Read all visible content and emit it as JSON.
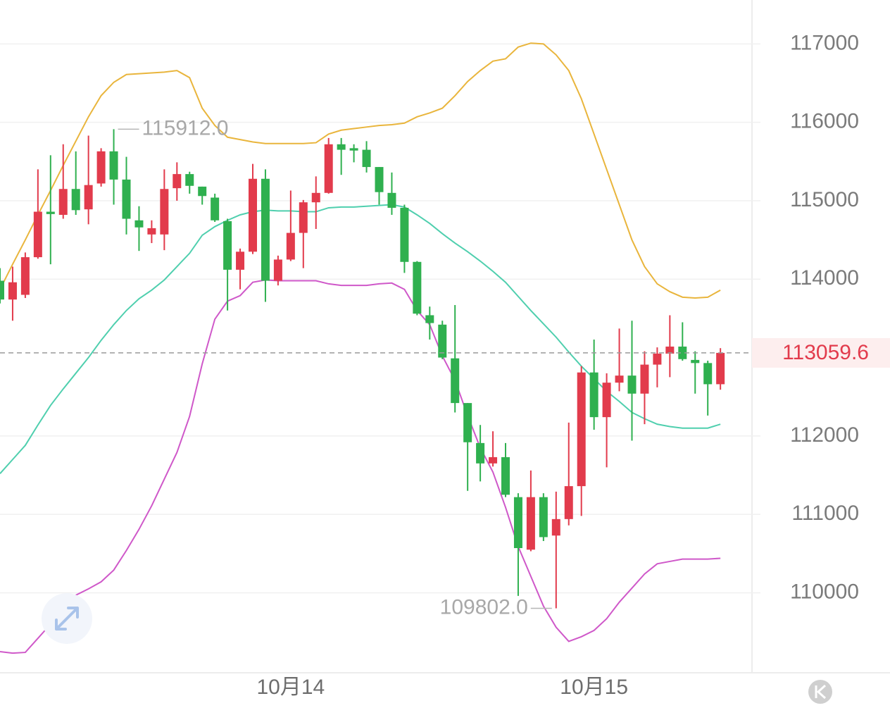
{
  "chart_data": {
    "type": "candlestick",
    "categories": [
      null,
      null,
      null,
      null,
      null,
      null,
      null,
      null,
      null,
      null,
      null,
      null,
      null,
      null,
      null,
      null,
      null,
      null,
      null,
      null,
      null,
      null,
      null,
      "10月14",
      null,
      null,
      null,
      null,
      null,
      null,
      null,
      null,
      null,
      null,
      null,
      null,
      null,
      null,
      null,
      null,
      null,
      null,
      null,
      null,
      null,
      null,
      null,
      "10月15",
      null,
      null,
      null,
      null,
      null,
      null,
      null,
      null,
      null,
      null
    ],
    "open": [
      113980,
      113740,
      113800,
      114280,
      114860,
      114820,
      115150,
      114890,
      115220,
      115630,
      115270,
      114750,
      114570,
      114570,
      115160,
      115340,
      115180,
      115040,
      114740,
      114120,
      114350,
      115280,
      113980,
      114250,
      114590,
      114980,
      115100,
      115720,
      115670,
      115650,
      115430,
      115100,
      114910,
      114220,
      113540,
      113420,
      112990,
      112420,
      111910,
      111650,
      111730,
      111220,
      110550,
      111220,
      110730,
      110940,
      111360,
      112810,
      112240,
      112680,
      112770,
      112540,
      112910,
      113050,
      113140,
      112970,
      112930,
      112660
    ],
    "close": [
      113740,
      113960,
      114280,
      114860,
      114830,
      115150,
      114880,
      115200,
      115630,
      115270,
      114770,
      114660,
      114650,
      115150,
      115340,
      115190,
      115060,
      114750,
      114120,
      114350,
      115280,
      113980,
      114250,
      114590,
      114980,
      115100,
      115720,
      115650,
      115640,
      115430,
      115110,
      114910,
      114220,
      113560,
      113440,
      113000,
      112420,
      111920,
      111650,
      111730,
      111250,
      110570,
      111220,
      110710,
      110940,
      111360,
      112810,
      112240,
      112680,
      112770,
      112540,
      112910,
      113050,
      113140,
      112980,
      112930,
      112660,
      113059.6
    ],
    "high": [
      114140,
      114160,
      114340,
      115400,
      115580,
      115720,
      115630,
      115830,
      115670,
      115912,
      115560,
      114930,
      114750,
      115400,
      115490,
      115370,
      115180,
      115090,
      114770,
      114390,
      115470,
      115400,
      114300,
      115130,
      115010,
      115310,
      115800,
      115800,
      115720,
      115760,
      115430,
      115360,
      114950,
      114230,
      113650,
      113470,
      113670,
      112420,
      112140,
      112060,
      111910,
      111270,
      111560,
      111270,
      111290,
      112170,
      112890,
      113230,
      112800,
      113370,
      113470,
      113080,
      113130,
      113540,
      113450,
      113080,
      112960,
      113120
    ],
    "low": [
      113690,
      113470,
      113760,
      114260,
      114190,
      114770,
      114820,
      114700,
      115180,
      114950,
      114570,
      114360,
      114460,
      114370,
      115000,
      115090,
      114950,
      114730,
      113600,
      113870,
      114320,
      113710,
      113920,
      114230,
      114140,
      114640,
      115090,
      115330,
      115490,
      115360,
      114950,
      114820,
      114080,
      113540,
      113230,
      112980,
      112300,
      111300,
      111420,
      111610,
      111220,
      109960,
      110530,
      110660,
      109802,
      110860,
      110980,
      112080,
      111600,
      112570,
      111940,
      112150,
      112620,
      112750,
      112960,
      112540,
      112260,
      112590
    ],
    "up_color": "#e23b4c",
    "down_color": "#2fb04f",
    "bands": [
      {
        "color": "#e9b53c",
        "values": [
          113870,
          114190,
          114500,
          114820,
          115130,
          115450,
          115760,
          116070,
          116340,
          116510,
          116610,
          116620,
          116630,
          116640,
          116660,
          116570,
          116180,
          115960,
          115810,
          115780,
          115750,
          115730,
          115730,
          115730,
          115730,
          115740,
          115850,
          115900,
          115920,
          115940,
          115960,
          115970,
          115990,
          116070,
          116120,
          116180,
          116340,
          116520,
          116660,
          116780,
          116810,
          116960,
          117010,
          117000,
          116860,
          116660,
          116300,
          115850,
          115400,
          114950,
          114500,
          114160,
          113940,
          113840,
          113770,
          113760,
          113770,
          113860
        ]
      },
      {
        "color": "#4fcfae",
        "values": [
          111520,
          111700,
          111880,
          112140,
          112390,
          112600,
          112800,
          113000,
          113220,
          113420,
          113600,
          113750,
          113860,
          113990,
          114160,
          114330,
          114560,
          114670,
          114750,
          114820,
          114860,
          114880,
          114870,
          114870,
          114860,
          114860,
          114910,
          114920,
          114920,
          114930,
          114940,
          114950,
          114920,
          114820,
          114710,
          114580,
          114460,
          114350,
          114230,
          114100,
          113960,
          113780,
          113600,
          113430,
          113260,
          113070,
          112890,
          112730,
          112570,
          112440,
          112300,
          112220,
          112150,
          112120,
          112100,
          112100,
          112100,
          112150
        ]
      },
      {
        "color": "#cf58c9",
        "values": [
          109250,
          109230,
          109240,
          109420,
          109600,
          109790,
          109970,
          110050,
          110140,
          110290,
          110540,
          110810,
          111110,
          111450,
          111790,
          112250,
          112920,
          113490,
          113720,
          113790,
          113960,
          113990,
          113980,
          113980,
          113980,
          113980,
          113940,
          113920,
          113920,
          113920,
          113940,
          113950,
          113870,
          113600,
          113420,
          113020,
          112710,
          112260,
          111850,
          111540,
          111090,
          110590,
          110210,
          109830,
          109560,
          109380,
          109440,
          109520,
          109670,
          109880,
          110060,
          110240,
          110370,
          110400,
          110430,
          110430,
          110430,
          110440
        ]
      }
    ],
    "annotations": [
      {
        "value": 115912,
        "label": "115912.0"
      },
      {
        "value": 109802,
        "label": "109802.0"
      }
    ],
    "last_price": 113059.6,
    "ylim": [
      108980,
      117560
    ],
    "yticks": [
      110000,
      111000,
      112000,
      114000,
      115000,
      116000,
      117000
    ],
    "grid": true
  }
}
